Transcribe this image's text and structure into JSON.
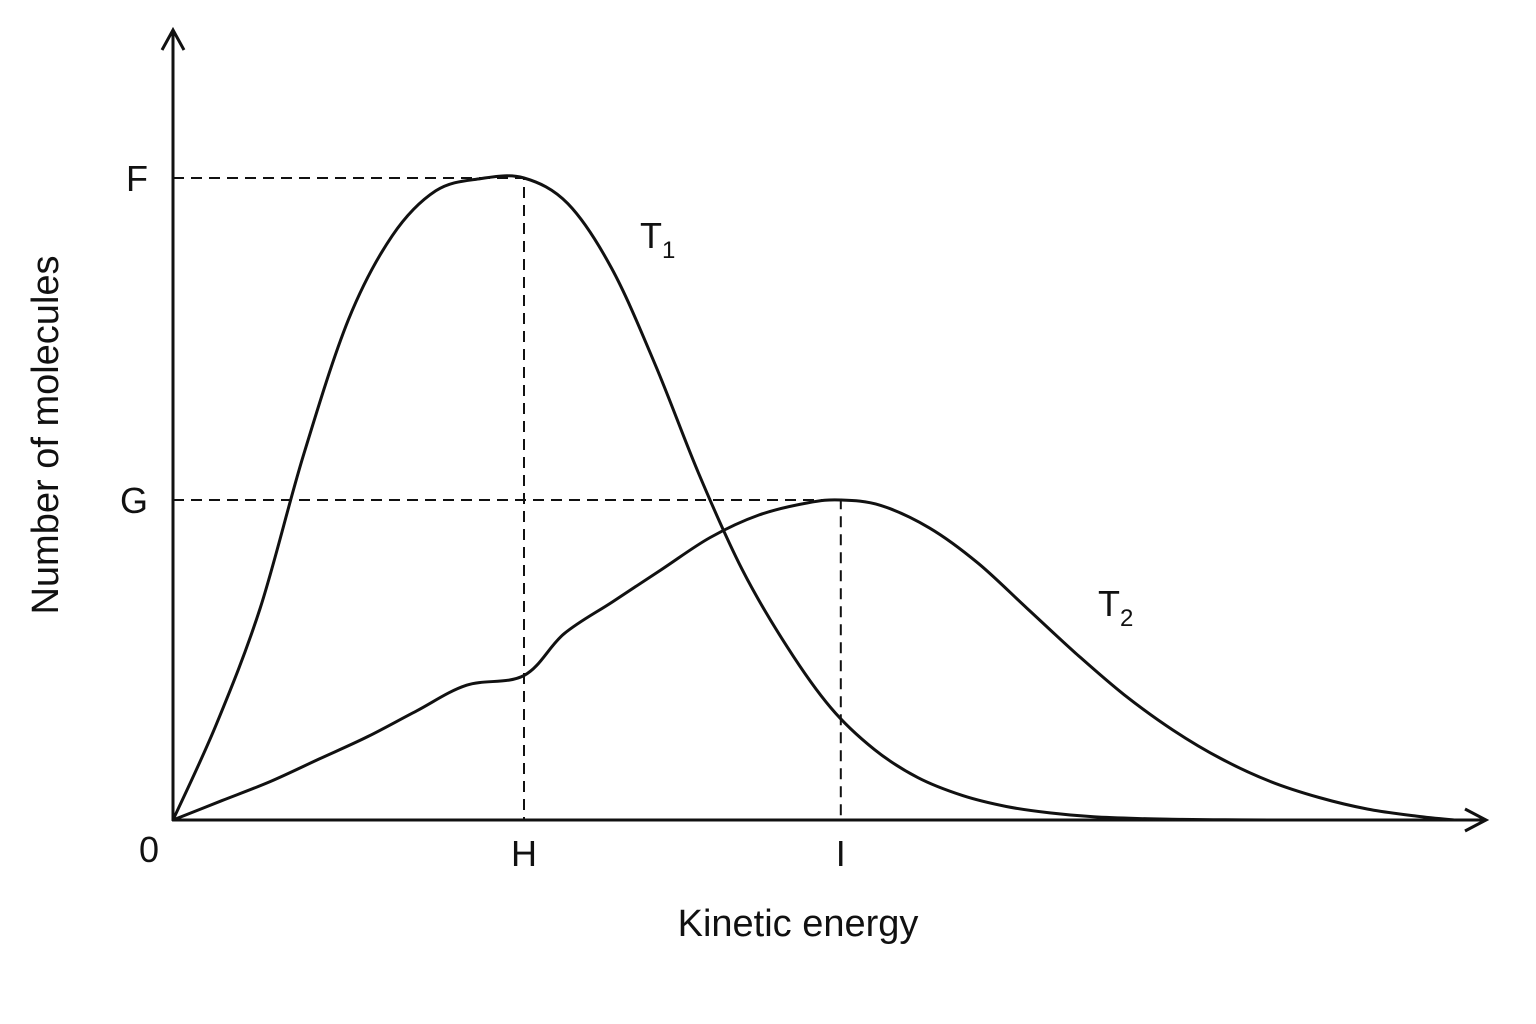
{
  "chart_data": {
    "type": "line",
    "title": "",
    "xlabel": "Kinetic energy",
    "ylabel": "Number of molecules",
    "xlim": [
      0,
      1
    ],
    "ylim": [
      0,
      1
    ],
    "grid": false,
    "axis_arrows": true,
    "x_tick_labels": [
      {
        "label": "0",
        "value": 0
      },
      {
        "label": "H",
        "value": 0.2738
      },
      {
        "label": "I",
        "value": 0.5209
      }
    ],
    "y_tick_labels": [
      {
        "label": "F",
        "value": 1.0
      },
      {
        "label": "G",
        "value": 0.4985
      }
    ],
    "reference_lines": [
      {
        "from": "F",
        "to": "H",
        "style": "dashed"
      },
      {
        "from": "G",
        "to": "I",
        "style": "dashed"
      }
    ],
    "series": [
      {
        "name": "T1",
        "label_main": "T",
        "label_sub": "1",
        "peak": {
          "x": "H",
          "y": "F"
        },
        "x": [
          0,
          0.034,
          0.068,
          0.102,
          0.137,
          0.171,
          0.205,
          0.24,
          0.2738,
          0.308,
          0.342,
          0.376,
          0.41,
          0.444,
          0.479,
          0.513,
          0.547,
          0.581,
          0.616,
          0.65,
          0.684,
          0.718,
          0.752,
          0.787,
          0.821,
          0.855
        ],
        "values": [
          0,
          0.15,
          0.33,
          0.57,
          0.78,
          0.91,
          0.98,
          0.999,
          1.0,
          0.96,
          0.86,
          0.71,
          0.54,
          0.39,
          0.27,
          0.175,
          0.11,
          0.066,
          0.038,
          0.021,
          0.011,
          0.005,
          0.0023,
          0.001,
          0.0003,
          0
        ]
      },
      {
        "name": "T2",
        "label_main": "T",
        "label_sub": "2",
        "peak": {
          "x": "I",
          "y": "G"
        },
        "x": [
          0,
          0.038,
          0.076,
          0.114,
          0.152,
          0.19,
          0.229,
          0.2738,
          0.305,
          0.343,
          0.381,
          0.419,
          0.457,
          0.495,
          0.5209,
          0.552,
          0.59,
          0.628,
          0.666,
          0.704,
          0.742,
          0.78,
          0.818,
          0.856,
          0.894,
          0.932,
          0.97,
          1.0
        ],
        "values": [
          0,
          0.03,
          0.06,
          0.095,
          0.13,
          0.17,
          0.21,
          0.225,
          0.29,
          0.34,
          0.39,
          0.44,
          0.475,
          0.494,
          0.4985,
          0.49,
          0.455,
          0.4,
          0.33,
          0.26,
          0.195,
          0.14,
          0.095,
          0.06,
          0.035,
          0.017,
          0.006,
          0
        ]
      }
    ]
  }
}
